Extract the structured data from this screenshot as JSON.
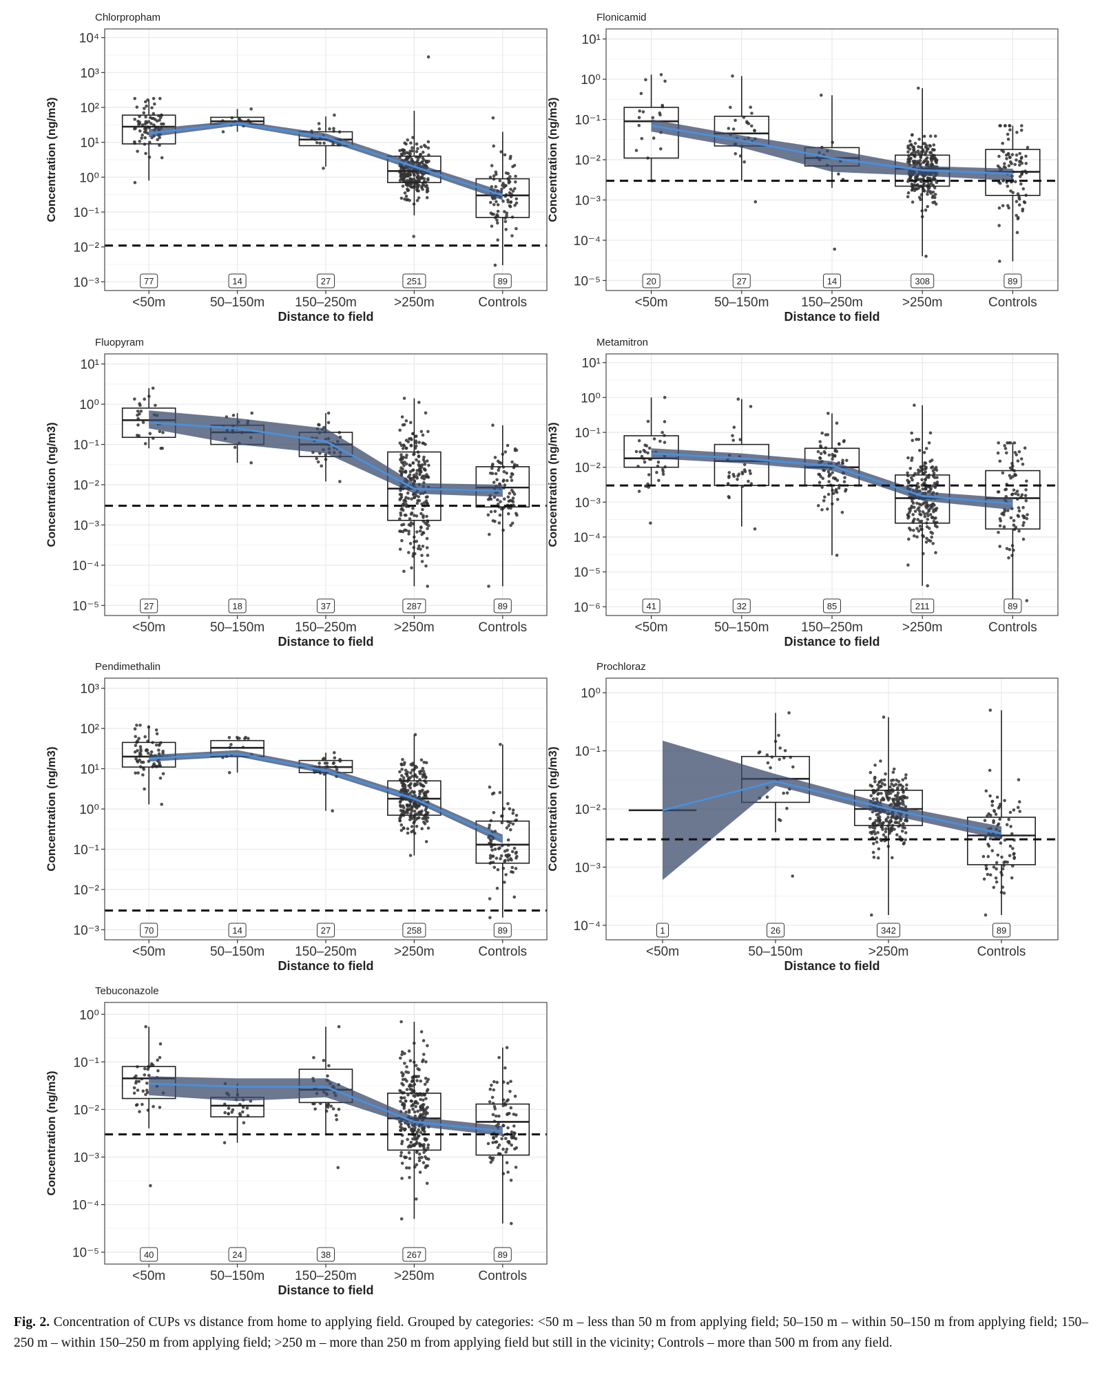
{
  "figure": {
    "caption_label": "Fig. 2.",
    "caption_text": "Concentration of CUPs vs distance from home to applying field. Grouped by categories: <50 m – less than 50 m from applying field; 50–150 m – within 50–150 m from applying field; 150–250 m – within 150–250 m from applying field; >250 m – more than 250 m from applying field but still in the vicinity; Controls – more than 500 m from any field."
  },
  "colors": {
    "box": "#222222",
    "points": "#333333",
    "fit_line": "#4a8fd9",
    "ribbon": "#3b4a6b",
    "ribbon_light": "#8fb3e6",
    "dashed": "#111111",
    "grid": "#e8e8e8",
    "panel_border": "#555555"
  },
  "chart_data": [
    {
      "type": "box",
      "title": "Chlorpropham",
      "xlabel": "Distance to field",
      "ylabel": "Concentration (ng/m3)",
      "categories": [
        "<50m",
        "50–150m",
        "150–250m",
        ">250m",
        "Controls"
      ],
      "yscale": "log10",
      "ylim_exp": [
        -3,
        4
      ],
      "ytick_exponents": [
        -3,
        -2,
        -1,
        0,
        1,
        2,
        3,
        4
      ],
      "counts": [
        "77",
        "14",
        "27",
        "251",
        "89"
      ],
      "boxes": [
        {
          "q1": 9,
          "median": 28,
          "q3": 60,
          "lo": 0.8,
          "hi": 160
        },
        {
          "q1": 33,
          "median": 40,
          "q3": 52,
          "lo": 20,
          "hi": 90
        },
        {
          "q1": 8,
          "median": 12,
          "q3": 20,
          "lo": 2,
          "hi": 55
        },
        {
          "q1": 0.7,
          "median": 1.5,
          "q3": 4,
          "lo": 0.08,
          "hi": 80
        },
        {
          "q1": 0.07,
          "median": 0.3,
          "q3": 0.9,
          "lo": 0.003,
          "hi": 20
        }
      ],
      "trend": [
        18,
        35,
        14,
        2,
        0.3
      ],
      "band_lower": [
        14,
        30,
        11,
        1.6,
        0.22
      ],
      "band_upper": [
        24,
        42,
        18,
        2.6,
        0.4
      ],
      "threshold": 0.011,
      "point_range": [
        [
          0.7,
          180
        ],
        [
          20,
          90
        ],
        [
          1.8,
          60
        ],
        [
          0.02,
          2800
        ],
        [
          0.003,
          50
        ]
      ]
    },
    {
      "type": "box",
      "title": "Flonicamid",
      "xlabel": "Distance to field",
      "ylabel": "Concentration (ng/m3)",
      "categories": [
        "<50m",
        "50–150m",
        "150–250m",
        ">250m",
        "Controls"
      ],
      "yscale": "log10",
      "ylim_exp": [
        -5,
        1
      ],
      "ytick_exponents": [
        -5,
        -4,
        -3,
        -2,
        -1,
        0,
        1
      ],
      "counts": [
        "20",
        "27",
        "14",
        "308",
        "89"
      ],
      "boxes": [
        {
          "q1": 0.011,
          "median": 0.09,
          "q3": 0.2,
          "lo": 0.003,
          "hi": 1.3
        },
        {
          "q1": 0.022,
          "median": 0.045,
          "q3": 0.12,
          "lo": 0.003,
          "hi": 1.2
        },
        {
          "q1": 0.007,
          "median": 0.011,
          "q3": 0.02,
          "lo": 0.002,
          "hi": 0.4
        },
        {
          "q1": 0.0022,
          "median": 0.006,
          "q3": 0.013,
          "lo": 4e-05,
          "hi": 0.6
        },
        {
          "q1": 0.0013,
          "median": 0.005,
          "q3": 0.018,
          "lo": 3e-05,
          "hi": 0.07
        }
      ],
      "trend": [
        0.07,
        0.03,
        0.011,
        0.0055,
        0.0045
      ],
      "band_lower": [
        0.05,
        0.02,
        0.005,
        0.004,
        0.003
      ],
      "band_upper": [
        0.1,
        0.04,
        0.018,
        0.007,
        0.006
      ],
      "threshold": 0.003,
      "point_range": [
        [
          0.003,
          1.3
        ],
        [
          0.0009,
          1.2
        ],
        [
          6e-05,
          0.4
        ],
        [
          4e-05,
          0.6
        ],
        [
          3e-05,
          0.07
        ]
      ]
    },
    {
      "type": "box",
      "title": "Fluopyram",
      "xlabel": "Distance to field",
      "ylabel": "Concentration (ng/m3)",
      "categories": [
        "<50m",
        "50–150m",
        "150–250m",
        ">250m",
        "Controls"
      ],
      "yscale": "log10",
      "ylim_exp": [
        -5,
        1
      ],
      "ytick_exponents": [
        -5,
        -4,
        -3,
        -2,
        -1,
        0,
        1
      ],
      "counts": [
        "27",
        "18",
        "37",
        "287",
        "89"
      ],
      "boxes": [
        {
          "q1": 0.15,
          "median": 0.4,
          "q3": 0.8,
          "lo": 0.08,
          "hi": 2.5
        },
        {
          "q1": 0.1,
          "median": 0.2,
          "q3": 0.3,
          "lo": 0.035,
          "hi": 0.6
        },
        {
          "q1": 0.05,
          "median": 0.1,
          "q3": 0.2,
          "lo": 0.012,
          "hi": 0.6
        },
        {
          "q1": 0.0013,
          "median": 0.008,
          "q3": 0.065,
          "lo": 3e-05,
          "hi": 1.4
        },
        {
          "q1": 0.0028,
          "median": 0.0085,
          "q3": 0.028,
          "lo": 3e-05,
          "hi": 0.3
        }
      ],
      "trend": [
        0.35,
        0.25,
        0.12,
        0.008,
        0.007
      ],
      "band_lower": [
        0.25,
        0.1,
        0.06,
        0.006,
        0.005
      ],
      "band_upper": [
        0.7,
        0.45,
        0.25,
        0.011,
        0.01
      ],
      "threshold": 0.003,
      "point_range": [
        [
          0.08,
          2.5
        ],
        [
          0.035,
          0.6
        ],
        [
          0.012,
          0.6
        ],
        [
          3e-05,
          1.4
        ],
        [
          3e-05,
          0.3
        ]
      ]
    },
    {
      "type": "box",
      "title": "Metamitron",
      "xlabel": "Distance to field",
      "ylabel": "Concentration (ng/m3)",
      "categories": [
        "<50m",
        "50–150m",
        "150–250m",
        ">250m",
        "Controls"
      ],
      "yscale": "log10",
      "ylim_exp": [
        -6,
        1
      ],
      "ytick_exponents": [
        -6,
        -5,
        -4,
        -3,
        -2,
        -1,
        0,
        1
      ],
      "counts": [
        "41",
        "32",
        "85",
        "211",
        "89"
      ],
      "boxes": [
        {
          "q1": 0.01,
          "median": 0.018,
          "q3": 0.08,
          "lo": 0.003,
          "hi": 1.0
        },
        {
          "q1": 0.003,
          "median": 0.015,
          "q3": 0.045,
          "lo": 0.0002,
          "hi": 0.9
        },
        {
          "q1": 0.003,
          "median": 0.01,
          "q3": 0.035,
          "lo": 3e-05,
          "hi": 0.35
        },
        {
          "q1": 0.00025,
          "median": 0.0013,
          "q3": 0.006,
          "lo": 4e-06,
          "hi": 0.6
        },
        {
          "q1": 0.00017,
          "median": 0.0013,
          "q3": 0.008,
          "lo": 1.5e-06,
          "hi": 0.05
        }
      ],
      "trend": [
        0.025,
        0.018,
        0.011,
        0.0015,
        0.0009
      ],
      "band_lower": [
        0.018,
        0.013,
        0.008,
        0.0011,
        0.0006
      ],
      "band_upper": [
        0.035,
        0.025,
        0.015,
        0.002,
        0.0013
      ],
      "threshold": 0.003,
      "point_range": [
        [
          0.00025,
          1.0
        ],
        [
          0.00017,
          0.9
        ],
        [
          3e-05,
          0.35
        ],
        [
          4e-06,
          0.6
        ],
        [
          1.5e-06,
          0.05
        ]
      ]
    },
    {
      "type": "box",
      "title": "Pendimethalin",
      "xlabel": "Distance to field",
      "ylabel": "Concentration (ng/m3)",
      "categories": [
        "<50m",
        "50–150m",
        "150–250m",
        ">250m",
        "Controls"
      ],
      "yscale": "log10",
      "ylim_exp": [
        -3,
        3
      ],
      "ytick_exponents": [
        -3,
        -2,
        -1,
        0,
        1,
        2,
        3
      ],
      "counts": [
        "70",
        "14",
        "27",
        "258",
        "89"
      ],
      "boxes": [
        {
          "q1": 11,
          "median": 20,
          "q3": 45,
          "lo": 1.3,
          "hi": 120
        },
        {
          "q1": 20,
          "median": 33,
          "q3": 50,
          "lo": 8,
          "hi": 60
        },
        {
          "q1": 8,
          "median": 11,
          "q3": 16,
          "lo": 0.9,
          "hi": 25
        },
        {
          "q1": 0.7,
          "median": 1.8,
          "q3": 5,
          "lo": 0.07,
          "hi": 70
        },
        {
          "q1": 0.045,
          "median": 0.13,
          "q3": 0.5,
          "lo": 0.002,
          "hi": 40
        }
      ],
      "trend": [
        18,
        24,
        9,
        1.8,
        0.18
      ],
      "band_lower": [
        15,
        20,
        7.5,
        1.5,
        0.14
      ],
      "band_upper": [
        22,
        29,
        11,
        2.2,
        0.23
      ],
      "threshold": 0.003,
      "point_range": [
        [
          1.3,
          120
        ],
        [
          8,
          60
        ],
        [
          0.9,
          25
        ],
        [
          0.07,
          70
        ],
        [
          0.002,
          40
        ]
      ]
    },
    {
      "type": "box",
      "title": "Prochloraz",
      "xlabel": "Distance to field",
      "ylabel": "Concentration (ng/m3)",
      "categories": [
        "<50m",
        "50–150m",
        ">250m",
        "Controls"
      ],
      "yscale": "log10",
      "ylim_exp": [
        -4,
        0
      ],
      "ytick_exponents": [
        -4,
        -3,
        -2,
        -1,
        0
      ],
      "counts": [
        "1",
        "26",
        "342",
        "89"
      ],
      "boxes": [
        {
          "q1": 0.0095,
          "median": 0.0095,
          "q3": 0.0095,
          "lo": 0.0095,
          "hi": 0.0095
        },
        {
          "q1": 0.013,
          "median": 0.033,
          "q3": 0.08,
          "lo": 0.004,
          "hi": 0.45
        },
        {
          "q1": 0.0052,
          "median": 0.01,
          "q3": 0.021,
          "lo": 0.00015,
          "hi": 0.38
        },
        {
          "q1": 0.0011,
          "median": 0.0035,
          "q3": 0.0072,
          "lo": 0.00015,
          "hi": 0.5
        }
      ],
      "trend": [
        0.0095,
        0.03,
        0.01,
        0.0038
      ],
      "band_lower": [
        0.0006,
        0.025,
        0.008,
        0.003
      ],
      "band_upper": [
        0.15,
        0.04,
        0.012,
        0.005
      ],
      "threshold": 0.003,
      "point_range": [
        [
          0.0095,
          0.0095
        ],
        [
          0.0007,
          0.45
        ],
        [
          0.00015,
          0.38
        ],
        [
          0.00015,
          0.5
        ]
      ]
    },
    {
      "type": "box",
      "title": "Tebuconazole",
      "xlabel": "Distance to field",
      "ylabel": "Concentration (ng/m3)",
      "categories": [
        "<50m",
        "50–150m",
        "150–250m",
        ">250m",
        "Controls"
      ],
      "yscale": "log10",
      "ylim_exp": [
        -5,
        0
      ],
      "ytick_exponents": [
        -5,
        -4,
        -3,
        -2,
        -1,
        0
      ],
      "counts": [
        "40",
        "24",
        "38",
        "267",
        "89"
      ],
      "boxes": [
        {
          "q1": 0.017,
          "median": 0.045,
          "q3": 0.08,
          "lo": 0.004,
          "hi": 0.55
        },
        {
          "q1": 0.007,
          "median": 0.012,
          "q3": 0.018,
          "lo": 0.002,
          "hi": 0.035
        },
        {
          "q1": 0.014,
          "median": 0.026,
          "q3": 0.07,
          "lo": 0.003,
          "hi": 0.55
        },
        {
          "q1": 0.0014,
          "median": 0.0065,
          "q3": 0.022,
          "lo": 5e-05,
          "hi": 0.7
        },
        {
          "q1": 0.0011,
          "median": 0.0055,
          "q3": 0.013,
          "lo": 4e-05,
          "hi": 0.2
        }
      ],
      "trend": [
        0.035,
        0.03,
        0.03,
        0.0055,
        0.0035
      ],
      "band_lower": [
        0.02,
        0.015,
        0.018,
        0.0045,
        0.0028
      ],
      "band_upper": [
        0.05,
        0.045,
        0.045,
        0.007,
        0.0045
      ],
      "threshold": 0.003,
      "point_range": [
        [
          0.00025,
          0.55
        ],
        [
          0.002,
          0.035
        ],
        [
          0.0006,
          0.55
        ],
        [
          5e-05,
          0.7
        ],
        [
          4e-05,
          0.2
        ]
      ]
    }
  ]
}
